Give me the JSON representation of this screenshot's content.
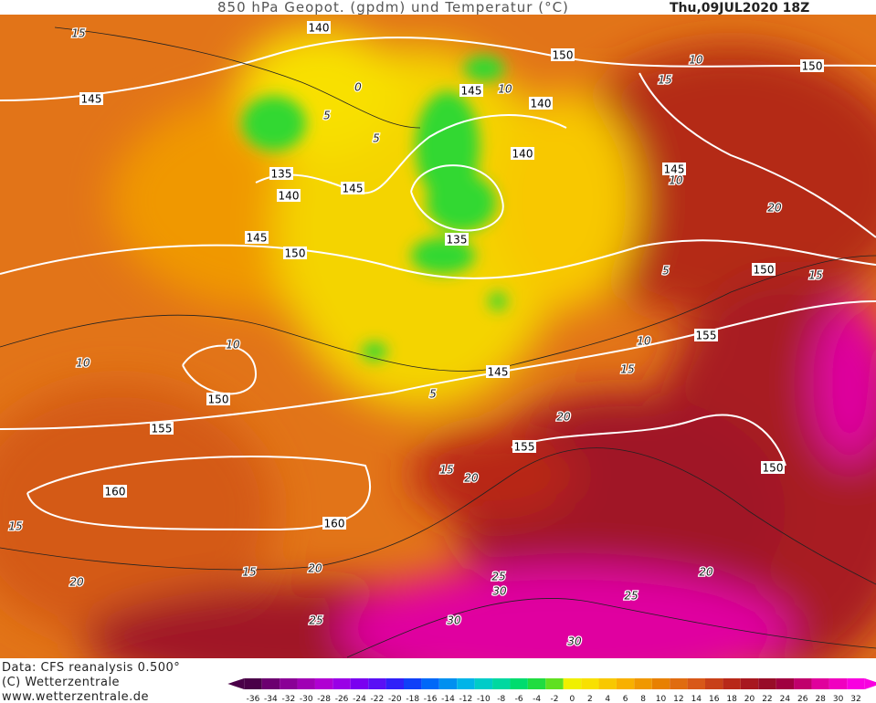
{
  "header": {
    "title": "850 hPa Geopot. (gpdm) und Temperatur (°C)",
    "date": "Thu,09JUL2020 18Z"
  },
  "footer": {
    "source": "Data: CFS reanalysis 0.500°",
    "copyright": "(C) Wetterzentrale",
    "url": "www.wetterzentrale.de"
  },
  "map": {
    "geopotential_labels": [
      140,
      150,
      150,
      145,
      145,
      140,
      140,
      145,
      135,
      140,
      145,
      135,
      145,
      150,
      150,
      155,
      145,
      150,
      155,
      155,
      150,
      160,
      160
    ],
    "isotherm_labels": [
      15,
      10,
      15,
      10,
      5,
      0,
      5,
      10,
      20,
      15,
      5,
      10,
      10,
      10,
      5,
      15,
      20,
      15,
      20,
      15,
      15,
      20,
      25,
      30,
      20,
      25,
      30,
      30,
      25,
      20
    ]
  },
  "colorbar": {
    "labels": [
      -36,
      -34,
      -32,
      -30,
      -28,
      -26,
      -24,
      -22,
      -20,
      -18,
      -16,
      -14,
      -12,
      -10,
      -8,
      -6,
      -4,
      -2,
      0,
      2,
      4,
      6,
      8,
      10,
      12,
      14,
      16,
      18,
      20,
      22,
      24,
      26,
      28,
      30,
      32
    ],
    "colors": [
      "#4a0048",
      "#6c0070",
      "#8a0096",
      "#a000b4",
      "#b000d2",
      "#9a00e6",
      "#7a00f0",
      "#5a10f5",
      "#3020f8",
      "#1040f8",
      "#0068f8",
      "#0090f0",
      "#00b4e8",
      "#00ccc8",
      "#00d8a0",
      "#00dc6e",
      "#20dc40",
      "#60e020",
      "#f0f000",
      "#f8e000",
      "#f8c800",
      "#f8b000",
      "#f09800",
      "#e88000",
      "#e06c10",
      "#d85818",
      "#c84018",
      "#b82818",
      "#a81820",
      "#980c28",
      "#a00040",
      "#c0006c",
      "#e0009c",
      "#f000c0",
      "#f800e0"
    ]
  }
}
